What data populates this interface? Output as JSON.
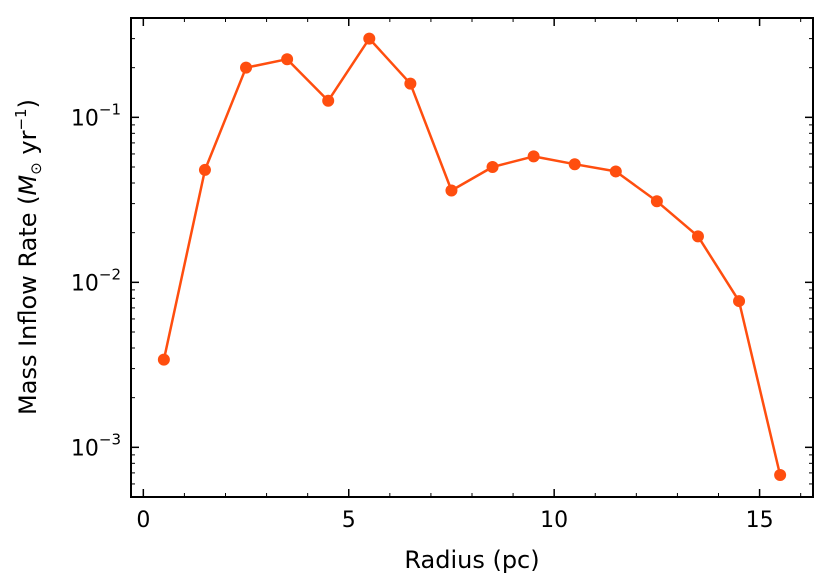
{
  "chart_data": {
    "type": "line",
    "title": "",
    "xlabel": "Radius (pc)",
    "ylabel": "Mass Inflow Rate (M⊙ yr⁻¹)",
    "ylabel_parts": {
      "prefix": "Mass Inflow Rate (",
      "symbol": "M",
      "subscript": "⊙",
      "unit": " yr",
      "exponent": "−1",
      "suffix": ")"
    },
    "xscale": "linear",
    "yscale": "log",
    "xlim": [
      -0.3,
      16.3
    ],
    "ylim": [
      0.0005,
      0.4
    ],
    "xticks": [
      0,
      5,
      10,
      15
    ],
    "yticks": [
      {
        "value": 0.001,
        "base": "10",
        "exp": "−3"
      },
      {
        "value": 0.01,
        "base": "10",
        "exp": "−2"
      },
      {
        "value": 0.1,
        "base": "10",
        "exp": "−1"
      }
    ],
    "grid": false,
    "legend": "none",
    "color": "#FF4E0F",
    "series": [
      {
        "x": [
          0.5,
          1.5,
          2.5,
          3.5,
          4.5,
          5.5,
          6.5,
          7.5,
          8.5,
          9.5,
          10.5,
          11.5,
          12.5,
          13.5,
          14.5,
          15.5
        ],
        "y": [
          0.0034,
          0.048,
          0.2,
          0.225,
          0.126,
          0.3,
          0.16,
          0.036,
          0.05,
          0.058,
          0.052,
          0.047,
          0.031,
          0.019,
          0.0077,
          0.00068
        ]
      }
    ]
  }
}
